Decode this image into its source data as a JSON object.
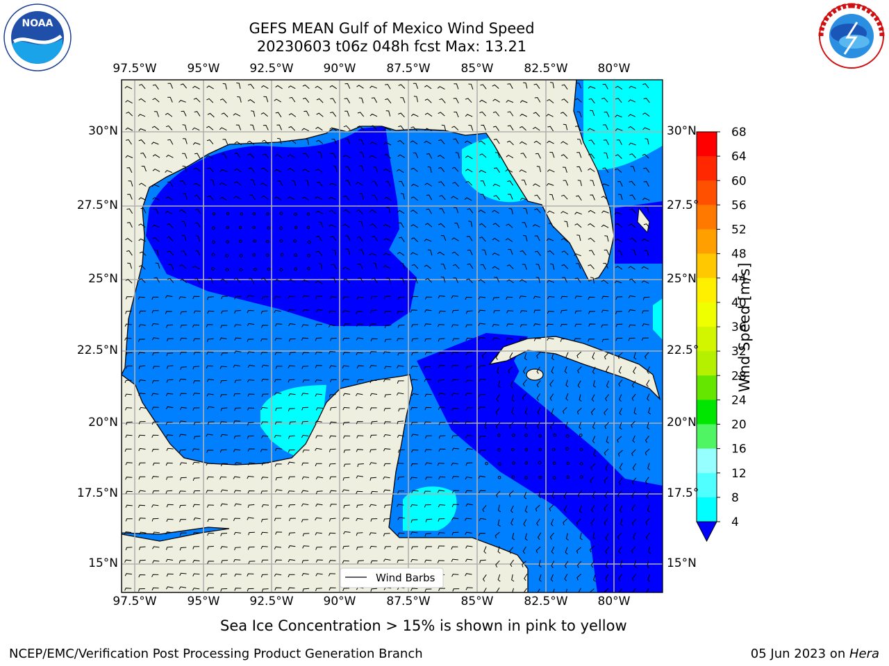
{
  "header": {
    "title_line1": "GEFS MEAN Gulf of Mexico Wind Speed",
    "title_line2": "20230603 t06z 048h fcst   Max: 13.21"
  },
  "logos": {
    "left": {
      "name": "noaa-logo",
      "text": "NOAA",
      "ring_text": "NATIONAL OCEANIC AND ATMOSPHERIC ADMINISTRATION · U.S. DEPARTMENT OF COMMERCE"
    },
    "right": {
      "name": "nws-logo",
      "ring_text": "NATIONAL WEATHER SERVICE"
    }
  },
  "map": {
    "lon_ticks": [
      "97.5°W",
      "95°W",
      "92.5°W",
      "90°W",
      "87.5°W",
      "85°W",
      "82.5°W",
      "80°W"
    ],
    "lat_ticks_left": [
      "30°N",
      "27.5°N",
      "25°N",
      "22.5°N",
      "20°N",
      "17.5°N",
      "15°N"
    ],
    "lat_ticks_right": [
      "30°N",
      "27.5°",
      "25°N",
      "22.5°",
      "20°N",
      "17.5°",
      "15°N"
    ],
    "legend_label": "Wind Barbs",
    "colors": {
      "land": "#efefdf",
      "lvl4": "#0080ff",
      "lvl0": "#0000ff",
      "lvl8": "#00ffff",
      "grid": "#b0b0b0"
    }
  },
  "colorbar": {
    "label": "Wind Speed [m/s]",
    "ticks": [
      "68",
      "64",
      "60",
      "56",
      "52",
      "48",
      "44",
      "40",
      "36",
      "32",
      "28",
      "24",
      "20",
      "16",
      "12",
      "8",
      "4"
    ],
    "colors": [
      "#ff0000",
      "#ff2800",
      "#ff5000",
      "#ff7800",
      "#ffa000",
      "#ffc800",
      "#fff000",
      "#f0ff00",
      "#d2f500",
      "#b4f000",
      "#64e600",
      "#00e600",
      "#50f564",
      "#96ffff",
      "#50ffff",
      "#00ffff",
      "#0080ff"
    ],
    "extend_color": "#0000ff"
  },
  "notes": {
    "sea_ice": "Sea Ice Concentration > 15% is shown in pink to yellow"
  },
  "footer": {
    "left": "NCEP/EMC/Verification Post Processing Product Generation Branch",
    "right_date": "05 Jun 2023 on ",
    "right_machine": "Hera"
  }
}
